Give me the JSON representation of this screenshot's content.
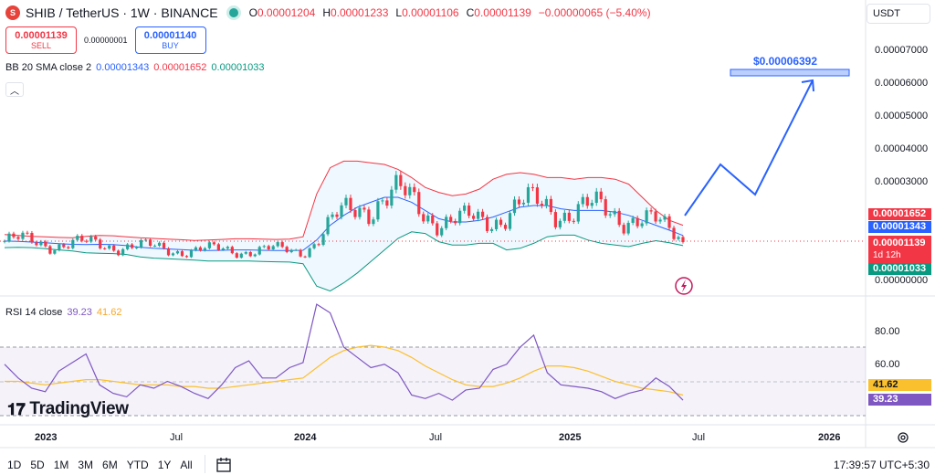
{
  "header": {
    "symbol_icon": "shib-logo-icon",
    "symbol_icon_text": "S",
    "title": "SHIB / TetherUS · 1W · BINANCE",
    "ohlc": [
      {
        "k": "O",
        "v": "0.00001204"
      },
      {
        "k": "H",
        "v": "0.00001233"
      },
      {
        "k": "L",
        "v": "0.00001106"
      },
      {
        "k": "C",
        "v": "0.00001139"
      }
    ],
    "change": "−0.00000065 (−5.40%)"
  },
  "trade": {
    "sell_price": "0.00001139",
    "sell_label": "SELL",
    "spread": "0.00000001",
    "buy_price": "0.00001140",
    "buy_label": "BUY"
  },
  "bb_legend": {
    "label": "BB 20 SMA close 2",
    "basis": "0.00001343",
    "upper": "0.00001652",
    "lower": "0.00001033"
  },
  "rsi_legend": {
    "label": "RSI 14 close",
    "rsi": "39.23",
    "ma": "41.62"
  },
  "currency_button": "USDT",
  "price_axis_ticks": [
    "0.00007000",
    "0.00006000",
    "0.00005000",
    "0.00004000",
    "0.00003000",
    "0.00000000"
  ],
  "rsi_axis_ticks": [
    "80.00",
    "60.00"
  ],
  "tags": {
    "upper": "0.00001652",
    "basis": "0.00001343",
    "close": "0.00001139",
    "countdown": "1d 12h",
    "lower": "0.00001033",
    "rsi_ma": "41.62",
    "rsi": "39.23"
  },
  "target_label": "$0.00006392",
  "time_axis": [
    "2023",
    "Jul",
    "2024",
    "Jul",
    "2025",
    "Jul",
    "2026"
  ],
  "brand": "TradingView",
  "timeframes": [
    "1D",
    "5D",
    "1M",
    "3M",
    "6M",
    "YTD",
    "1Y",
    "All"
  ],
  "clock": "17:39:57 UTC+5:30",
  "colors": {
    "up": "#26a69a",
    "down": "#f23645",
    "bb_upper": "#f23645",
    "bb_basis": "#2962ff",
    "bb_lower": "#089981",
    "rsi": "#7e57c2",
    "rsi_ma": "#fbc02d",
    "projection": "#2962ff"
  },
  "chart_data": {
    "type": "line",
    "note_series": "weekly candles approximated",
    "price_ylim": [
      0,
      7.5e-05
    ],
    "series": [
      {
        "name": "BB upper",
        "values": [
          1.37e-05,
          1.34e-05,
          1.31e-05,
          1.3e-05,
          1.28e-05,
          1.27e-05,
          1.31e-05,
          1.34e-05,
          1.33e-05,
          1.3e-05,
          1.27e-05,
          1.25e-05,
          1.23e-05,
          1.21e-05,
          1.19e-05,
          1.2e-05,
          1.22e-05,
          1.24e-05,
          1.24e-05,
          1.23e-05,
          1.22e-05,
          1.23e-05,
          1.3e-05,
          2.6e-05,
          3.4e-05,
          3.6e-05,
          3.6e-05,
          3.55e-05,
          3.5e-05,
          3.35e-05,
          3.1e-05,
          2.8e-05,
          2.65e-05,
          2.55e-05,
          2.6e-05,
          2.75e-05,
          3.05e-05,
          3.2e-05,
          3.25e-05,
          3.2e-05,
          3.1e-05,
          3.1e-05,
          3.05e-05,
          3.1e-05,
          3.1e-05,
          3.05e-05,
          2.9e-05,
          2.5e-05,
          2.1e-05,
          1.8e-05,
          1.65e-05
        ]
      },
      {
        "name": "BB basis",
        "values": [
          1.17e-05,
          1.16e-05,
          1.14e-05,
          1.12e-05,
          1.09e-05,
          1.07e-05,
          1.06e-05,
          1.07e-05,
          1.06e-05,
          1.03e-05,
          9.8e-06,
          9.5e-06,
          9.3e-06,
          9.1e-06,
          8.9e-06,
          8.8e-06,
          8.9e-06,
          9e-06,
          9e-06,
          8.9e-06,
          8.8e-06,
          8.8e-06,
          8.9e-06,
          1.2e-05,
          1.65e-05,
          1.95e-05,
          2.2e-05,
          2.35e-05,
          2.5e-05,
          2.5e-05,
          2.35e-05,
          2.1e-05,
          1.85e-05,
          1.75e-05,
          1.75e-05,
          1.8e-05,
          1.9e-05,
          2.05e-05,
          2.2e-05,
          2.25e-05,
          2.25e-05,
          2.15e-05,
          2.1e-05,
          2.1e-05,
          2.1e-05,
          2.05e-05,
          1.95e-05,
          1.8e-05,
          1.65e-05,
          1.5e-05,
          1.34e-05
        ]
      },
      {
        "name": "BB lower",
        "values": [
          9.7e-06,
          9.8e-06,
          9.7e-06,
          9.4e-06,
          9e-06,
          8.7e-06,
          8.1e-06,
          8e-06,
          7.9e-06,
          7.6e-06,
          6.9e-06,
          6.5e-06,
          6.3e-06,
          6.1e-06,
          5.9e-06,
          5.6e-06,
          5.6e-06,
          5.6e-06,
          5.6e-06,
          5.5e-06,
          5.4e-06,
          5.3e-06,
          4.8e-06,
          -2e-06,
          -3.5e-06,
          -1e-06,
          2e-06,
          5.5e-06,
          9e-06,
          1.25e-05,
          1.45e-05,
          1.4e-05,
          1.15e-05,
          1.05e-05,
          1.05e-05,
          1.1e-05,
          1.1e-05,
          9e-06,
          9.5e-06,
          1.1e-05,
          1.3e-05,
          1.35e-05,
          1.35e-05,
          1.2e-05,
          1.1e-05,
          1.05e-05,
          1e-05,
          1.1e-05,
          1.18e-05,
          1.12e-05,
          1.03e-05
        ]
      }
    ],
    "rsi": {
      "ylim": [
        0,
        100
      ],
      "rsi": [
        60,
        52,
        46,
        44,
        56,
        61,
        66,
        48,
        43,
        41,
        48,
        46,
        50,
        47,
        43,
        40,
        48,
        58,
        62,
        52,
        52,
        58,
        61,
        95,
        90,
        70,
        64,
        58,
        60,
        55,
        42,
        40,
        43,
        39,
        45,
        46,
        57,
        60,
        70,
        77,
        55,
        48,
        47,
        46,
        44,
        40,
        43,
        45,
        52,
        47,
        39
      ],
      "ma": [
        50,
        50,
        49,
        48,
        49,
        50,
        51,
        51,
        50,
        49,
        48,
        48,
        48,
        47,
        47,
        46,
        46,
        47,
        48,
        49,
        50,
        51,
        52,
        58,
        64,
        68,
        70,
        71,
        70,
        68,
        64,
        59,
        55,
        51,
        48,
        47,
        47,
        49,
        52,
        56,
        59,
        59,
        58,
        56,
        53,
        50,
        48,
        46,
        45,
        44,
        42
      ]
    },
    "rsi_levels": [
      70,
      50,
      30
    ],
    "projection": {
      "target": 6.392e-05
    }
  }
}
